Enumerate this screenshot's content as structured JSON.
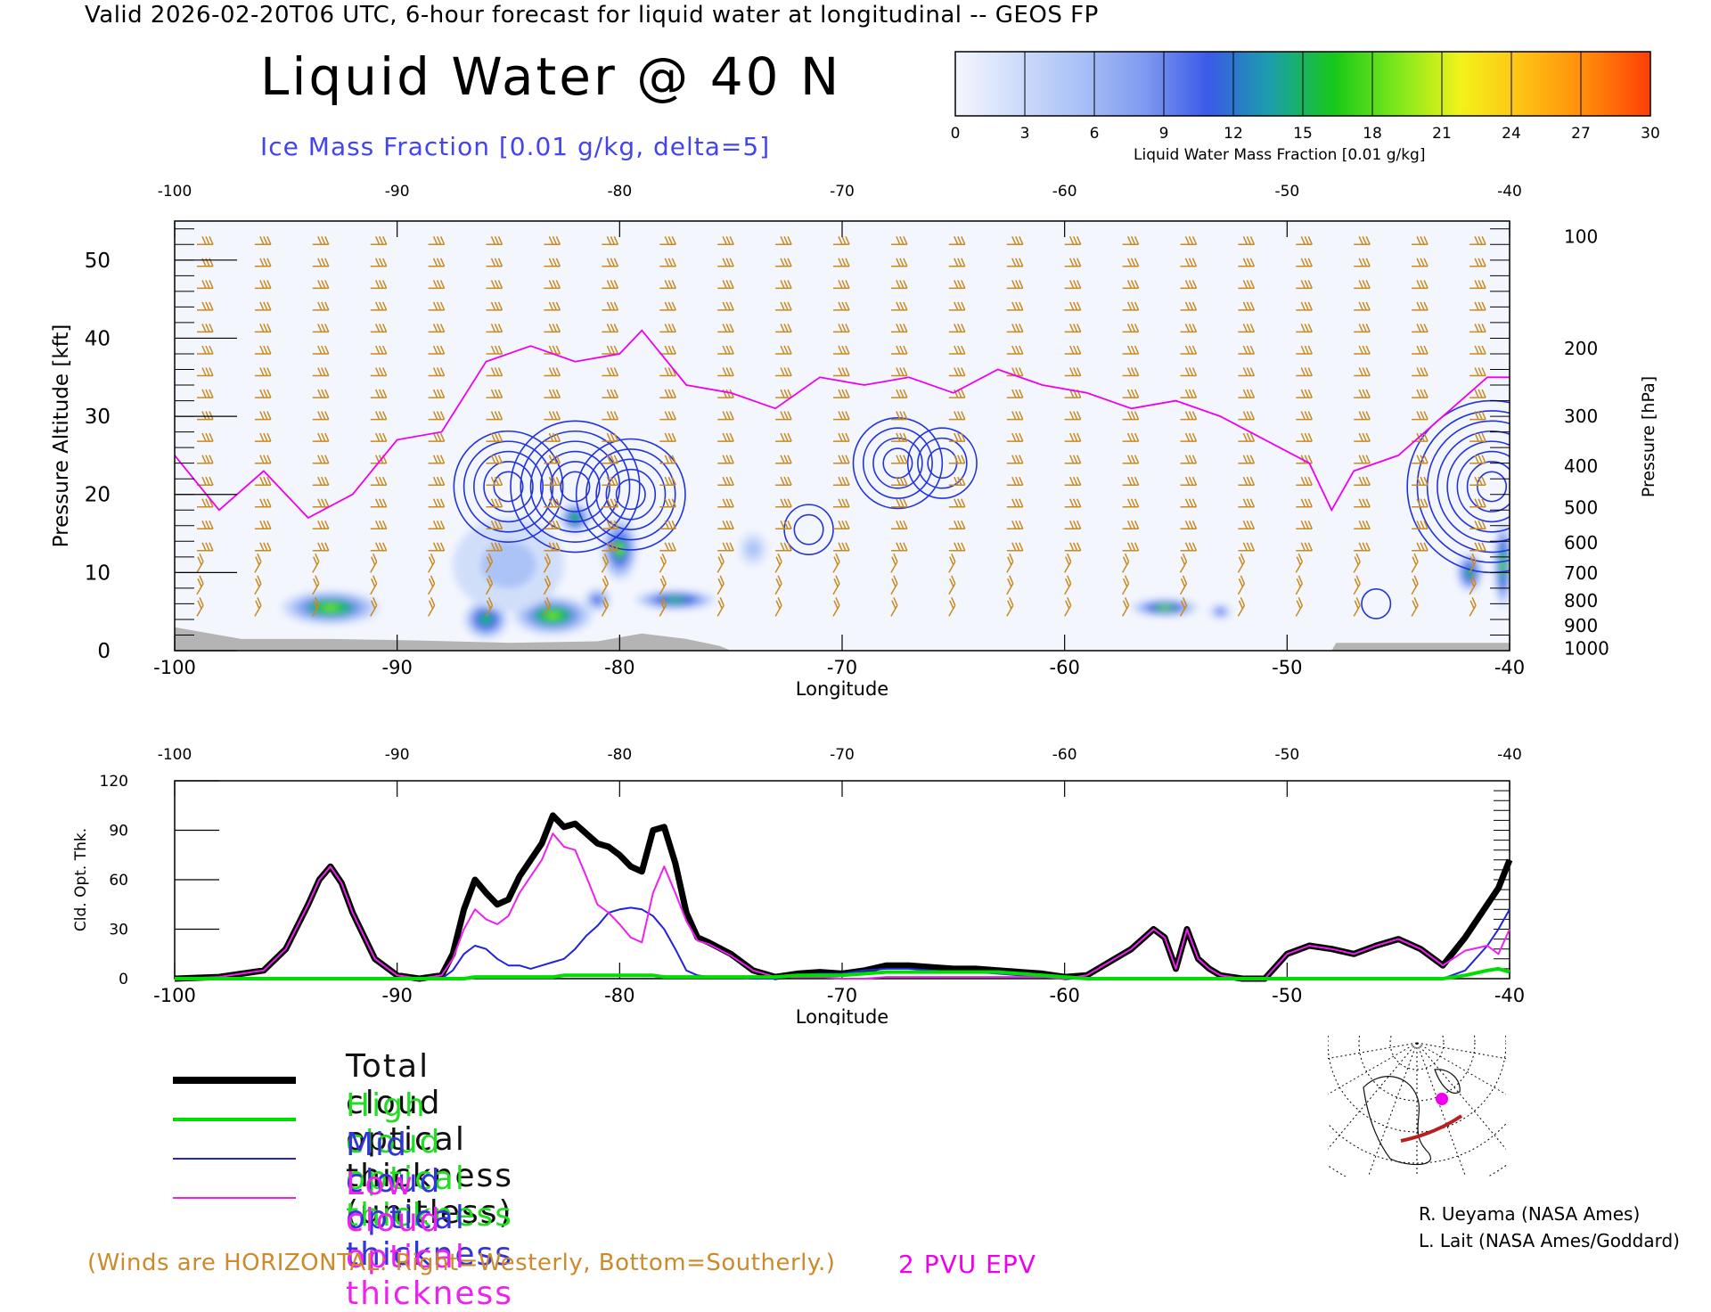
{
  "header": {
    "valid_line": "Valid 2026-02-20T06 UTC, 6-hour forecast for liquid water at longitudinal -- GEOS FP",
    "title": "Liquid Water @ 40 N",
    "subtitle": "Ice Mass Fraction [0.01 g/kg, delta=5]"
  },
  "colorbar": {
    "title": "Liquid Water Mass Fraction [0.01 g/kg]",
    "ticks": [
      "0",
      "3",
      "6",
      "9",
      "12",
      "15",
      "18",
      "21",
      "24",
      "27",
      "30"
    ],
    "colors": [
      "#f4f6fe",
      "#cddcfa",
      "#a9c0f7",
      "#7e9af0",
      "#3a5ae8",
      "#1aa0a8",
      "#18c818",
      "#7ee81c",
      "#f2f21a",
      "#ffc014",
      "#ff8a0a",
      "#ff3e06"
    ]
  },
  "chart_data": [
    {
      "type": "heatmap",
      "description_fields": "cross-section",
      "xlabel": "Longitude",
      "ylabel": "Pressure Altitude [kft]",
      "y2label": "Pressure [hPa]",
      "xlim": [
        -100,
        -40
      ],
      "ylim": [
        0,
        55
      ],
      "x_ticks": [
        "-100",
        "-90",
        "-80",
        "-70",
        "-60",
        "-50",
        "-40"
      ],
      "y_ticks": [
        "0",
        "10",
        "20",
        "30",
        "40",
        "50"
      ],
      "pressure_ticks": [
        {
          "label": "100",
          "kft": 53
        },
        {
          "label": "200",
          "kft": 38.7
        },
        {
          "label": "300",
          "kft": 30
        },
        {
          "label": "400",
          "kft": 23.6
        },
        {
          "label": "500",
          "kft": 18.3
        },
        {
          "label": "600",
          "kft": 13.8
        },
        {
          "label": "700",
          "kft": 9.9
        },
        {
          "label": "800",
          "kft": 6.4
        },
        {
          "label": "900",
          "kft": 3.2
        },
        {
          "label": "1000",
          "kft": 0.3
        }
      ],
      "liquid_water_blobs": [
        {
          "lon": -93,
          "kft": 5.5,
          "peak": 19,
          "spread_lon": 2.2,
          "spread_kft": 2.2
        },
        {
          "lon": -86,
          "kft": 4.0,
          "peak": 17,
          "spread_lon": 1.0,
          "spread_kft": 2.5
        },
        {
          "lon": -83,
          "kft": 4.5,
          "peak": 19,
          "spread_lon": 1.8,
          "spread_kft": 2.5
        },
        {
          "lon": -80,
          "kft": 13,
          "peak": 18,
          "spread_lon": 0.8,
          "spread_kft": 4.0
        },
        {
          "lon": -82,
          "kft": 17,
          "peak": 16,
          "spread_lon": 0.7,
          "spread_kft": 2.0
        },
        {
          "lon": -77.5,
          "kft": 6.5,
          "peak": 17,
          "spread_lon": 1.8,
          "spread_kft": 1.3
        },
        {
          "lon": -81,
          "kft": 6.5,
          "peak": 12,
          "spread_lon": 0.6,
          "spread_kft": 1.5
        },
        {
          "lon": -55.5,
          "kft": 5.5,
          "peak": 18,
          "spread_lon": 1.5,
          "spread_kft": 1.2
        },
        {
          "lon": -53,
          "kft": 5.0,
          "peak": 10,
          "spread_lon": 0.5,
          "spread_kft": 1.0
        },
        {
          "lon": -41.8,
          "kft": 10,
          "peak": 17,
          "spread_lon": 0.6,
          "spread_kft": 2.5
        },
        {
          "lon": -40.3,
          "kft": 11,
          "peak": 20,
          "spread_lon": 0.4,
          "spread_kft": 5.5
        },
        {
          "lon": -85,
          "kft": 11,
          "peak": 6,
          "spread_lon": 2.5,
          "spread_kft": 6.0
        },
        {
          "lon": -74,
          "kft": 13,
          "peak": 5,
          "spread_lon": 0.6,
          "spread_kft": 2.0
        }
      ],
      "ice_contour_centers": [
        {
          "lon": -85,
          "kft": 21,
          "rings": 5
        },
        {
          "lon": -82,
          "kft": 21,
          "rings": 6
        },
        {
          "lon": -79.5,
          "kft": 20,
          "rings": 5
        },
        {
          "lon": -67.5,
          "kft": 24,
          "rings": 4
        },
        {
          "lon": -65.5,
          "kft": 24,
          "rings": 3
        },
        {
          "lon": -71.5,
          "kft": 15.5,
          "rings": 2
        },
        {
          "lon": -40.8,
          "kft": 21,
          "rings": 8
        },
        {
          "lon": -46,
          "kft": 6.0,
          "rings": 1
        }
      ],
      "epv_2pvu_kft": [
        {
          "lon": -100,
          "kft": 25
        },
        {
          "lon": -98,
          "kft": 18
        },
        {
          "lon": -96,
          "kft": 23
        },
        {
          "lon": -94,
          "kft": 17
        },
        {
          "lon": -92,
          "kft": 20
        },
        {
          "lon": -90,
          "kft": 27
        },
        {
          "lon": -88,
          "kft": 28
        },
        {
          "lon": -86,
          "kft": 37
        },
        {
          "lon": -84,
          "kft": 39
        },
        {
          "lon": -82,
          "kft": 37
        },
        {
          "lon": -80,
          "kft": 38
        },
        {
          "lon": -79,
          "kft": 41
        },
        {
          "lon": -77,
          "kft": 34
        },
        {
          "lon": -75,
          "kft": 33
        },
        {
          "lon": -73,
          "kft": 31
        },
        {
          "lon": -71,
          "kft": 35
        },
        {
          "lon": -69,
          "kft": 34
        },
        {
          "lon": -67,
          "kft": 35
        },
        {
          "lon": -65,
          "kft": 33
        },
        {
          "lon": -63,
          "kft": 36
        },
        {
          "lon": -61,
          "kft": 34
        },
        {
          "lon": -59,
          "kft": 33
        },
        {
          "lon": -57,
          "kft": 31
        },
        {
          "lon": -55,
          "kft": 32
        },
        {
          "lon": -53,
          "kft": 30
        },
        {
          "lon": -51,
          "kft": 27
        },
        {
          "lon": -49,
          "kft": 24
        },
        {
          "lon": -48,
          "kft": 18
        },
        {
          "lon": -47,
          "kft": 23
        },
        {
          "lon": -45,
          "kft": 25
        },
        {
          "lon": -43,
          "kft": 30
        },
        {
          "lon": -41,
          "kft": 35
        },
        {
          "lon": -40,
          "kft": 35
        }
      ],
      "terrain_kft": [
        {
          "lon": -100,
          "kft": 3.0
        },
        {
          "lon": -99,
          "kft": 2.5
        },
        {
          "lon": -97,
          "kft": 1.5
        },
        {
          "lon": -93,
          "kft": 1.5
        },
        {
          "lon": -89,
          "kft": 1.3
        },
        {
          "lon": -85,
          "kft": 1.0
        },
        {
          "lon": -81,
          "kft": 1.2
        },
        {
          "lon": -79,
          "kft": 2.2
        },
        {
          "lon": -77,
          "kft": 1.5
        },
        {
          "lon": -75.5,
          "kft": 0.6
        },
        {
          "lon": -75,
          "kft": 0
        },
        {
          "lon": -48,
          "kft": 0
        },
        {
          "lon": -47.8,
          "kft": 1.0
        },
        {
          "lon": -40,
          "kft": 1.0
        }
      ]
    },
    {
      "type": "line",
      "xlabel": "Longitude",
      "ylabel": "Cld. Opt. Thk.",
      "xlim": [
        -100,
        -40
      ],
      "ylim": [
        0,
        120
      ],
      "x_ticks": [
        "-100",
        "-90",
        "-80",
        "-70",
        "-60",
        "-50",
        "-40"
      ],
      "y_ticks": [
        "0",
        "30",
        "60",
        "90",
        "120"
      ],
      "x": [
        -100,
        -98,
        -96,
        -95,
        -94,
        -93.5,
        -93,
        -92.5,
        -92,
        -91,
        -90,
        -89,
        -88,
        -87.5,
        -87,
        -86.5,
        -86,
        -85.5,
        -85,
        -84.5,
        -84,
        -83.5,
        -83,
        -82.5,
        -82,
        -81.5,
        -81,
        -80.5,
        -80,
        -79.5,
        -79,
        -78.5,
        -78,
        -77.5,
        -77,
        -76.5,
        -76,
        -75,
        -74,
        -73,
        -72,
        -71,
        -70,
        -69,
        -68,
        -67,
        -66,
        -65,
        -64,
        -63,
        -62,
        -61,
        -60,
        -59,
        -58,
        -57,
        -56,
        -55.5,
        -55,
        -54.5,
        -54,
        -53.5,
        -53,
        -52,
        -51,
        -50,
        -49,
        -48,
        -47,
        -46,
        -45,
        -44,
        -43,
        -42,
        -41,
        -40.5,
        -40
      ],
      "series": [
        {
          "name": "Total cloud optical thickness (unitless)",
          "color": "#000000",
          "width": 7,
          "values": [
            0,
            1,
            5,
            18,
            45,
            60,
            68,
            58,
            40,
            12,
            2,
            0,
            2,
            15,
            42,
            60,
            52,
            45,
            48,
            62,
            72,
            82,
            99,
            92,
            94,
            88,
            82,
            80,
            75,
            68,
            65,
            90,
            92,
            70,
            40,
            25,
            22,
            15,
            5,
            1,
            3,
            4,
            3,
            5,
            8,
            8,
            7,
            6,
            6,
            5,
            4,
            3,
            1,
            2,
            10,
            18,
            30,
            25,
            6,
            30,
            12,
            6,
            2,
            0,
            0,
            15,
            20,
            18,
            15,
            20,
            24,
            18,
            8,
            25,
            45,
            55,
            72
          ]
        },
        {
          "name": "High cloud optical thickness",
          "color": "#00dd00",
          "width": 4,
          "values": [
            0,
            0,
            0,
            0,
            0,
            0,
            0,
            0,
            0,
            0,
            0,
            0,
            0,
            0,
            0,
            1,
            1,
            1,
            1,
            1,
            1,
            1,
            1,
            2,
            2,
            2,
            2,
            2,
            2,
            2,
            2,
            2,
            1,
            1,
            1,
            1,
            1,
            1,
            1,
            1,
            2,
            2,
            2,
            3,
            4,
            4,
            4,
            4,
            4,
            4,
            3,
            2,
            1,
            0,
            0,
            0,
            0,
            0,
            0,
            0,
            0,
            0,
            0,
            0,
            0,
            0,
            0,
            0,
            0,
            0,
            0,
            0,
            0,
            2,
            5,
            6,
            4
          ]
        },
        {
          "name": "Mid cloud optical thickness",
          "color": "#2222dd",
          "width": 2,
          "values": [
            0,
            0,
            0,
            0,
            0,
            0,
            0,
            0,
            0,
            0,
            0,
            0,
            0,
            5,
            15,
            20,
            18,
            12,
            8,
            8,
            6,
            8,
            10,
            12,
            18,
            26,
            32,
            40,
            42,
            43,
            42,
            38,
            30,
            18,
            5,
            2,
            1,
            1,
            0,
            0,
            2,
            3,
            3,
            5,
            6,
            6,
            5,
            4,
            4,
            3,
            2,
            1,
            0,
            0,
            0,
            0,
            0,
            0,
            0,
            0,
            0,
            0,
            0,
            0,
            0,
            0,
            0,
            0,
            0,
            0,
            0,
            0,
            0,
            5,
            20,
            30,
            42
          ]
        },
        {
          "name": "Low cloud optical thickness",
          "color": "#ee22ee",
          "width": 2,
          "values": [
            0,
            1,
            5,
            18,
            45,
            60,
            68,
            58,
            40,
            12,
            2,
            0,
            2,
            12,
            30,
            42,
            36,
            33,
            38,
            52,
            62,
            72,
            88,
            80,
            78,
            62,
            45,
            40,
            33,
            25,
            22,
            52,
            68,
            52,
            35,
            23,
            21,
            14,
            5,
            1,
            1,
            1,
            0,
            0,
            1,
            1,
            1,
            1,
            1,
            1,
            1,
            1,
            0,
            2,
            10,
            18,
            30,
            25,
            6,
            30,
            12,
            6,
            2,
            0,
            0,
            15,
            20,
            18,
            15,
            20,
            24,
            18,
            8,
            17,
            20,
            15,
            30
          ]
        }
      ]
    }
  ],
  "legend": [
    {
      "label": "Total cloud optical thickness (unitless)",
      "color": "#000000",
      "text_color": "#111111",
      "width": 8
    },
    {
      "label": "High cloud optical thickness",
      "color": "#00dd00",
      "text_color": "#22dd22",
      "width": 4
    },
    {
      "label": "Mid cloud optical thickness",
      "color": "#2222dd",
      "text_color": "#3333dd",
      "width": 2
    },
    {
      "label": "Low cloud optical thickness",
      "color": "#ee22ee",
      "text_color": "#ee22ee",
      "width": 2
    }
  ],
  "notes": {
    "winds": "(Winds are HORIZONTAL: Right=Westerly, Bottom=Southerly.)",
    "epv": "2 PVU EPV"
  },
  "credits": {
    "line1": "R. Ueyama (NASA Ames)",
    "line2": "L. Lait (NASA Ames/Goddard)"
  }
}
